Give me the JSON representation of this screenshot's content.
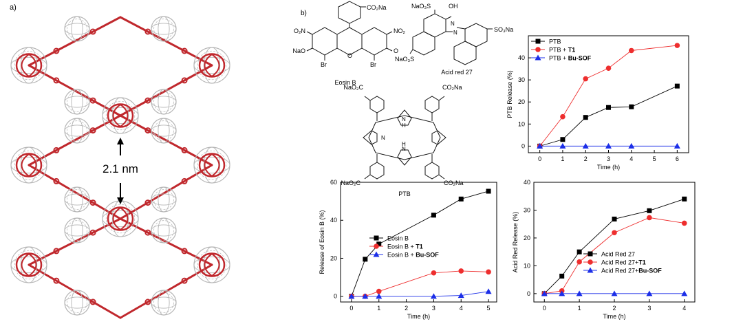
{
  "panel_labels": {
    "a": "a)",
    "b": "b)"
  },
  "structure": {
    "distance_label": "2.1 nm",
    "framework_color": "#c0282d",
    "cage_color": "#b5b5b5"
  },
  "molecules": {
    "eosin": {
      "name": "Eosin B",
      "groups": [
        "CO₂Na",
        "O₂N",
        "NO₂",
        "NaO",
        "O",
        "O",
        "Br",
        "Br"
      ]
    },
    "acid_red": {
      "name": "Acid red 27",
      "groups": [
        "NaO₃S",
        "OH",
        "N",
        "N",
        "SO₃Na",
        "NaO₃S"
      ]
    },
    "ptb": {
      "name": "PTB",
      "groups": [
        "NaO₂C",
        "CO₂Na",
        "NaO₂C",
        "CO₂Na",
        "N",
        "H",
        "N",
        "N",
        "H"
      ]
    }
  },
  "colors": {
    "black": "#000000",
    "red": "#ee2e2e",
    "blue": "#1c2fe8"
  },
  "chart_data": [
    {
      "id": "ptb",
      "type": "line",
      "xlabel": "Time (h)",
      "ylabel": "PTB Release (%)",
      "xlim": [
        -0.5,
        6.5
      ],
      "ylim": [
        -3,
        50
      ],
      "xticks": [
        0,
        1,
        2,
        3,
        4,
        5,
        6
      ],
      "yticks": [
        0,
        10,
        20,
        30,
        40
      ],
      "legend_position": "top-left",
      "series": [
        {
          "name": "PTB",
          "name_base": "PTB",
          "name_bold": "",
          "marker": "square",
          "color": "#000000",
          "x": [
            0,
            1,
            2,
            3,
            4,
            6
          ],
          "y": [
            0,
            3,
            13,
            17.5,
            17.8,
            27.2
          ]
        },
        {
          "name": "PTB + T1",
          "name_base": "PTB + ",
          "name_bold": "T1",
          "marker": "circle",
          "color": "#ee2e2e",
          "x": [
            0,
            1,
            2,
            3,
            4,
            6
          ],
          "y": [
            0,
            13.3,
            30.5,
            35.3,
            43.3,
            45.6
          ]
        },
        {
          "name": "PTB + Bu-SOF",
          "name_base": "PTB + ",
          "name_bold": "Bu-SOF",
          "marker": "triangle",
          "color": "#1c2fe8",
          "x": [
            0,
            1,
            2,
            3,
            4,
            6
          ],
          "y": [
            0,
            0,
            0,
            0,
            0,
            0
          ]
        }
      ]
    },
    {
      "id": "eosin",
      "type": "line",
      "xlabel": "Time (h)",
      "ylabel": "Release of Eosin B (%)",
      "xlim": [
        -0.4,
        5.3
      ],
      "ylim": [
        -3,
        60
      ],
      "xticks": [
        0,
        1,
        2,
        3,
        4,
        5
      ],
      "yticks": [
        0,
        20,
        40,
        60
      ],
      "legend_position": "center-right",
      "series": [
        {
          "name": "Eosin B",
          "name_base": "Eosin B",
          "name_bold": "",
          "marker": "square",
          "color": "#000000",
          "x": [
            0,
            0.5,
            1,
            3,
            4,
            5
          ],
          "y": [
            0,
            19.5,
            27.5,
            42.7,
            51.2,
            55.3
          ]
        },
        {
          "name": "Eosin B + T1",
          "name_base": "Eosin B + ",
          "name_bold": "T1",
          "marker": "circle",
          "color": "#ee2e2e",
          "x": [
            0,
            0.5,
            1,
            3,
            4,
            5
          ],
          "y": [
            0,
            0,
            2.6,
            12.3,
            13.3,
            12.8
          ]
        },
        {
          "name": "Eosin B + Bu-SOF",
          "name_base": "Eosin B + ",
          "name_bold": "Bu-SOF",
          "marker": "triangle",
          "color": "#1c2fe8",
          "x": [
            0,
            0.5,
            1,
            3,
            4,
            5
          ],
          "y": [
            0,
            0,
            0,
            0,
            0.4,
            2.5
          ]
        }
      ]
    },
    {
      "id": "acidred",
      "type": "line",
      "xlabel": "Time (h)",
      "ylabel": "Acid Red Release (%)",
      "xlim": [
        -0.3,
        4.3
      ],
      "ylim": [
        -3,
        40
      ],
      "xticks": [
        0,
        1,
        2,
        3,
        4
      ],
      "yticks": [
        0,
        10,
        20,
        30,
        40
      ],
      "legend_position": "bottom-right",
      "series": [
        {
          "name": "Acid Red 27",
          "name_base": "Acid Red 27",
          "name_bold": "",
          "marker": "square",
          "color": "#000000",
          "x": [
            0,
            0.5,
            1,
            2,
            3,
            4
          ],
          "y": [
            0,
            6.3,
            15,
            26.8,
            29.8,
            34
          ]
        },
        {
          "name": "Acid Red 27+T1",
          "name_base": "Acid Red 27+",
          "name_bold": "T1",
          "marker": "circle",
          "color": "#ee2e2e",
          "x": [
            0,
            0.5,
            1,
            2,
            3,
            4
          ],
          "y": [
            0,
            1,
            11.4,
            21.9,
            27.3,
            25.3
          ]
        },
        {
          "name": "Acid Red 27+Bu-SOF",
          "name_base": "Acid Red 27+",
          "name_bold": "Bu-SOF",
          "marker": "triangle",
          "color": "#1c2fe8",
          "x": [
            0,
            0.5,
            1,
            2,
            3,
            4
          ],
          "y": [
            0,
            0,
            0,
            0,
            0,
            0
          ]
        }
      ]
    }
  ]
}
